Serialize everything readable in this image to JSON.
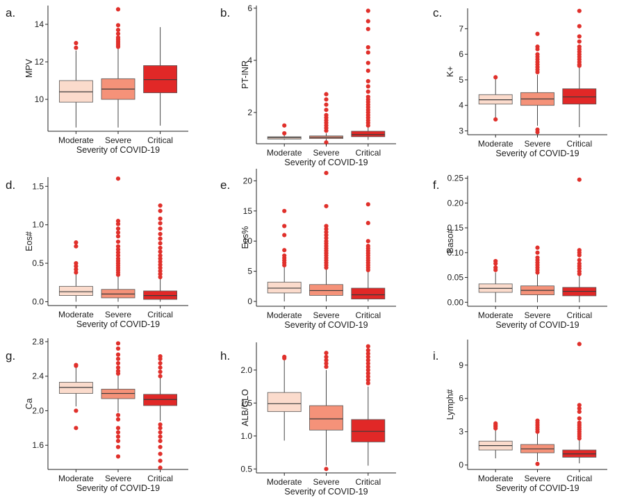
{
  "chart_data": [
    {
      "panel": "a.",
      "type": "box",
      "categories": [
        "Moderate",
        "Severe",
        "Critical"
      ],
      "xlabel": "Severity of COVID-19",
      "ylabel": "MPV",
      "ylim": [
        8.3,
        15.0
      ],
      "yticks": [
        10,
        12,
        14
      ],
      "tick_decimals": 0,
      "boxes": [
        {
          "q1": 9.85,
          "median": 10.4,
          "q3": 11.0,
          "whisker_low": 8.5,
          "whisker_high": 12.6,
          "outliers": [
            12.75,
            13.0
          ]
        },
        {
          "q1": 10.0,
          "median": 10.55,
          "q3": 11.1,
          "whisker_low": 8.5,
          "whisker_high": 12.7,
          "outliers": [
            12.8,
            12.9,
            13.0,
            13.1,
            13.2,
            13.3,
            13.5,
            13.7,
            13.95,
            14.8
          ]
        },
        {
          "q1": 10.35,
          "median": 11.05,
          "q3": 11.8,
          "whisker_low": 8.6,
          "whisker_high": 13.85,
          "outliers": []
        }
      ]
    },
    {
      "panel": "b.",
      "type": "box",
      "categories": [
        "Moderate",
        "Severe",
        "Critical"
      ],
      "xlabel": "Severity of COVID-19",
      "ylabel": "PT-INR",
      "ylim": [
        0.8,
        6.1
      ],
      "yticks": [
        2,
        4,
        6
      ],
      "tick_decimals": 0,
      "boxes": [
        {
          "q1": 0.98,
          "median": 1.03,
          "q3": 1.07,
          "whisker_low": 0.95,
          "whisker_high": 1.12,
          "outliers": [
            1.2,
            1.5
          ]
        },
        {
          "q1": 1.0,
          "median": 1.05,
          "q3": 1.1,
          "whisker_low": 0.9,
          "whisker_high": 1.2,
          "outliers": [
            0.85,
            1.3,
            1.4,
            1.5,
            1.6,
            1.7,
            1.8,
            1.9,
            2.1,
            2.3,
            2.5,
            2.7
          ]
        },
        {
          "q1": 1.07,
          "median": 1.15,
          "q3": 1.28,
          "whisker_low": 0.95,
          "whisker_high": 1.45,
          "outliers": [
            1.5,
            1.6,
            1.7,
            1.8,
            1.9,
            2.0,
            2.1,
            2.2,
            2.3,
            2.4,
            2.5,
            2.6,
            2.8,
            3.0,
            3.2,
            3.6,
            3.9,
            4.3,
            4.5,
            5.2,
            5.5,
            5.9
          ]
        }
      ]
    },
    {
      "panel": "c.",
      "type": "box",
      "categories": [
        "Moderate",
        "Severe",
        "Critical"
      ],
      "xlabel": "Severity of COVID-19",
      "ylabel": "K+",
      "ylim": [
        2.85,
        7.8
      ],
      "yticks": [
        3,
        4,
        5,
        6,
        7
      ],
      "tick_decimals": 0,
      "boxes": [
        {
          "q1": 4.05,
          "median": 4.22,
          "q3": 4.42,
          "whisker_low": 3.45,
          "whisker_high": 5.05,
          "outliers": [
            3.45,
            5.1
          ]
        },
        {
          "q1": 4.0,
          "median": 4.25,
          "q3": 4.5,
          "whisker_low": 3.2,
          "whisker_high": 5.2,
          "outliers": [
            2.95,
            3.05,
            5.3,
            5.4,
            5.5,
            5.6,
            5.7,
            5.8,
            5.9,
            6.0,
            6.2,
            6.3,
            6.8
          ]
        },
        {
          "q1": 4.05,
          "median": 4.33,
          "q3": 4.65,
          "whisker_low": 3.15,
          "whisker_high": 5.5,
          "outliers": [
            5.55,
            5.6,
            5.7,
            5.8,
            5.9,
            6.0,
            6.1,
            6.2,
            6.3,
            6.5,
            6.7,
            7.1,
            7.7
          ]
        }
      ]
    },
    {
      "panel": "d.",
      "type": "box",
      "categories": [
        "Moderate",
        "Severe",
        "Critical"
      ],
      "xlabel": "Severity of COVID-19",
      "ylabel": "Eos#",
      "ylim": [
        -0.05,
        1.62
      ],
      "yticks": [
        0.0,
        0.5,
        1.0,
        1.5
      ],
      "tick_decimals": 1,
      "boxes": [
        {
          "q1": 0.08,
          "median": 0.13,
          "q3": 0.2,
          "whisker_low": 0.0,
          "whisker_high": 0.36,
          "outliers": [
            0.38,
            0.42,
            0.46,
            0.5,
            0.72,
            0.77
          ]
        },
        {
          "q1": 0.05,
          "median": 0.1,
          "q3": 0.16,
          "whisker_low": 0.0,
          "whisker_high": 0.33,
          "outliers": [
            0.35,
            0.38,
            0.41,
            0.44,
            0.47,
            0.5,
            0.53,
            0.56,
            0.6,
            0.64,
            0.68,
            0.72,
            0.78,
            0.85,
            0.9,
            0.95,
            1.01,
            1.05,
            1.6
          ]
        },
        {
          "q1": 0.03,
          "median": 0.08,
          "q3": 0.14,
          "whisker_low": 0.0,
          "whisker_high": 0.3,
          "outliers": [
            0.32,
            0.36,
            0.4,
            0.44,
            0.48,
            0.52,
            0.56,
            0.6,
            0.65,
            0.7,
            0.76,
            0.82,
            0.88,
            0.95,
            1.02,
            1.08,
            1.18,
            1.25
          ]
        }
      ]
    },
    {
      "panel": "e.",
      "type": "box",
      "categories": [
        "Moderate",
        "Severe",
        "Critical"
      ],
      "xlabel": "Severity of COVID-19",
      "ylabel": "Eos%",
      "ylim": [
        -0.8,
        22
      ],
      "yticks": [
        0,
        5,
        10,
        15,
        20
      ],
      "tick_decimals": 0,
      "boxes": [
        {
          "q1": 1.4,
          "median": 2.2,
          "q3": 3.2,
          "whisker_low": 0.0,
          "whisker_high": 5.8,
          "outliers": [
            6.0,
            6.4,
            6.8,
            7.2,
            7.6,
            8.5,
            11.0,
            12.5,
            15.0
          ]
        },
        {
          "q1": 1.0,
          "median": 1.8,
          "q3": 2.8,
          "whisker_low": 0.0,
          "whisker_high": 5.4,
          "outliers": [
            5.6,
            6.0,
            6.4,
            6.8,
            7.2,
            7.6,
            8.0,
            8.4,
            8.8,
            9.2,
            9.6,
            10.0,
            10.5,
            11.0,
            11.5,
            12.0,
            12.5,
            15.8,
            21.3
          ]
        },
        {
          "q1": 0.4,
          "median": 1.1,
          "q3": 2.2,
          "whisker_low": 0.0,
          "whisker_high": 5.0,
          "outliers": [
            5.2,
            5.6,
            6.0,
            6.4,
            6.8,
            7.2,
            7.6,
            8.0,
            8.4,
            8.8,
            9.2,
            10.0,
            13.0,
            16.1
          ]
        }
      ]
    },
    {
      "panel": "f.",
      "type": "box",
      "categories": [
        "Moderate",
        "Severe",
        "Critical"
      ],
      "xlabel": "Severity of COVID-19",
      "ylabel": "Baso#",
      "ylim": [
        -0.008,
        0.255
      ],
      "yticks": [
        0.0,
        0.05,
        0.1,
        0.15,
        0.2,
        0.25
      ],
      "tick_decimals": 2,
      "boxes": [
        {
          "q1": 0.02,
          "median": 0.028,
          "q3": 0.037,
          "whisker_low": 0.0,
          "whisker_high": 0.06,
          "outliers": [
            0.065,
            0.07,
            0.078,
            0.083
          ]
        },
        {
          "q1": 0.015,
          "median": 0.024,
          "q3": 0.033,
          "whisker_low": 0.0,
          "whisker_high": 0.058,
          "outliers": [
            0.06,
            0.065,
            0.07,
            0.075,
            0.08,
            0.085,
            0.09,
            0.1,
            0.11
          ]
        },
        {
          "q1": 0.013,
          "median": 0.022,
          "q3": 0.03,
          "whisker_low": 0.0,
          "whisker_high": 0.055,
          "outliers": [
            0.057,
            0.062,
            0.068,
            0.073,
            0.078,
            0.085,
            0.095,
            0.1,
            0.105,
            0.247
          ]
        }
      ]
    },
    {
      "panel": "g.",
      "type": "box",
      "categories": [
        "Moderate",
        "Severe",
        "Critical"
      ],
      "xlabel": "Severity of COVID-19",
      "ylabel": "Ca",
      "ylim": [
        1.32,
        2.84
      ],
      "yticks": [
        1.6,
        2.0,
        2.4,
        2.8
      ],
      "tick_decimals": 1,
      "boxes": [
        {
          "q1": 2.2,
          "median": 2.27,
          "q3": 2.33,
          "whisker_low": 2.05,
          "whisker_high": 2.5,
          "outliers": [
            1.8,
            2.0,
            2.52,
            2.53
          ]
        },
        {
          "q1": 2.14,
          "median": 2.2,
          "q3": 2.25,
          "whisker_low": 1.98,
          "whisker_high": 2.42,
          "outliers": [
            1.47,
            1.58,
            1.65,
            1.7,
            1.75,
            1.8,
            1.9,
            1.95,
            2.43,
            2.46,
            2.5,
            2.55,
            2.6,
            2.65,
            2.72,
            2.78
          ]
        },
        {
          "q1": 2.06,
          "median": 2.13,
          "q3": 2.19,
          "whisker_low": 1.88,
          "whisker_high": 2.38,
          "outliers": [
            1.34,
            1.42,
            1.5,
            1.58,
            1.65,
            1.7,
            1.75,
            1.8,
            1.84,
            2.4,
            2.45,
            2.5,
            2.55,
            2.6,
            2.63
          ]
        }
      ]
    },
    {
      "panel": "h.",
      "type": "box",
      "categories": [
        "Moderate",
        "Severe",
        "Critical"
      ],
      "xlabel": "Severity of COVID-19",
      "ylabel": "ALB/GLO",
      "ylim": [
        0.44,
        2.42
      ],
      "yticks": [
        0.5,
        1.0,
        1.5,
        2.0
      ],
      "tick_decimals": 1,
      "boxes": [
        {
          "q1": 1.37,
          "median": 1.49,
          "q3": 1.66,
          "whisker_low": 0.93,
          "whisker_high": 2.15,
          "outliers": [
            2.18,
            2.2
          ]
        },
        {
          "q1": 1.09,
          "median": 1.26,
          "q3": 1.46,
          "whisker_low": 0.55,
          "whisker_high": 2.0,
          "outliers": [
            0.5,
            2.05,
            2.1,
            2.15,
            2.2,
            2.26
          ]
        },
        {
          "q1": 0.91,
          "median": 1.07,
          "q3": 1.25,
          "whisker_low": 0.55,
          "whisker_high": 1.75,
          "outliers": [
            1.8,
            1.85,
            1.9,
            1.95,
            2.0,
            2.05,
            2.1,
            2.15,
            2.2,
            2.25,
            2.3,
            2.36
          ]
        }
      ]
    },
    {
      "panel": "i.",
      "type": "box",
      "categories": [
        "Moderate",
        "Severe",
        "Critical"
      ],
      "xlabel": "Severity of COVID-19",
      "ylabel": "Lymph#",
      "ylim": [
        -0.4,
        11.3
      ],
      "yticks": [
        0,
        3,
        6,
        9
      ],
      "tick_decimals": 0,
      "boxes": [
        {
          "q1": 1.35,
          "median": 1.75,
          "q3": 2.15,
          "whisker_low": 0.6,
          "whisker_high": 3.2,
          "outliers": [
            3.3,
            3.45,
            3.6,
            3.75
          ]
        },
        {
          "q1": 1.1,
          "median": 1.45,
          "q3": 1.85,
          "whisker_low": 0.35,
          "whisker_high": 2.9,
          "outliers": [
            0.1,
            3.0,
            3.2,
            3.4,
            3.6,
            3.8,
            4.0
          ]
        },
        {
          "q1": 0.7,
          "median": 1.0,
          "q3": 1.35,
          "whisker_low": 0.15,
          "whisker_high": 2.3,
          "outliers": [
            2.4,
            2.6,
            2.8,
            3.0,
            3.2,
            3.4,
            3.6,
            3.8,
            4.2,
            4.8,
            5.1,
            5.4,
            10.9
          ]
        }
      ]
    }
  ],
  "colors": {
    "Moderate": "#fbdbcc",
    "Severe": "#f59279",
    "Critical": "#e12827",
    "outlier": "#e0302b"
  }
}
